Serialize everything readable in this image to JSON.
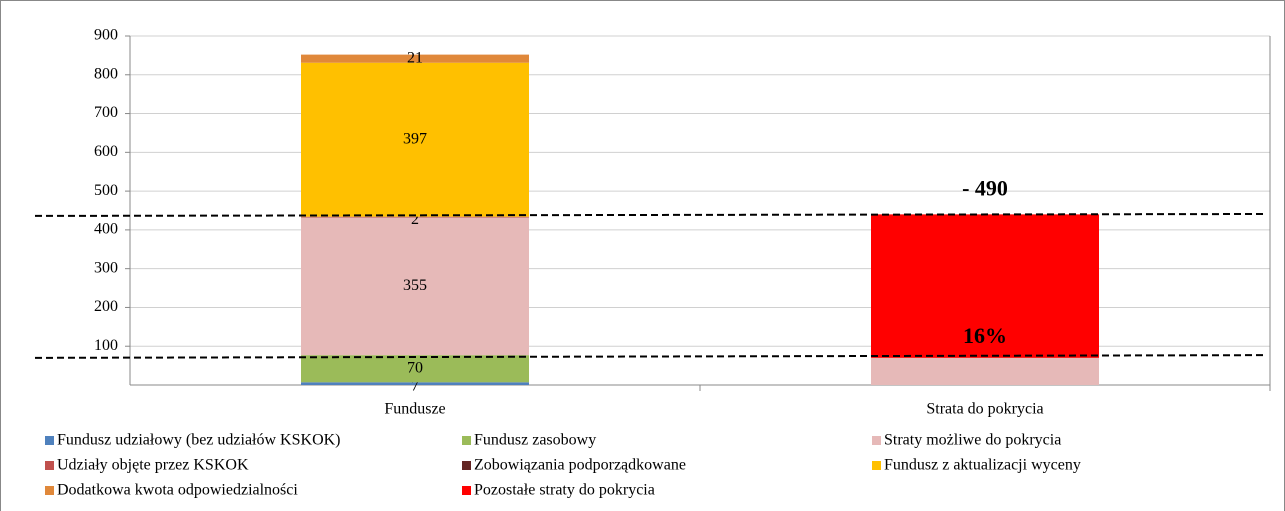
{
  "chart_data": {
    "type": "stacked_bar",
    "categories": [
      "Fundusze",
      "Strata do pokrycia"
    ],
    "series": [
      {
        "name": "Fundusz udziałowy (bez udziałów KSKOK)",
        "color": "#4f81bd",
        "values": [
          7,
          0
        ]
      },
      {
        "name": "Fundusz zasobowy",
        "color": "#9bbb59",
        "values": [
          70,
          0
        ]
      },
      {
        "name": "Straty możliwe do pokrycia",
        "color": "#e6b9b8",
        "values": [
          355,
          70
        ]
      },
      {
        "name": "Udziały objęte przez KSKOK",
        "color": "#c0504d",
        "values": [
          2,
          0
        ]
      },
      {
        "name": "Zobowiązania podporządkowane",
        "color": "#632523",
        "values": [
          0,
          0
        ]
      },
      {
        "name": "Fundusz z aktualizacji wyceny",
        "color": "#ffc000",
        "values": [
          397,
          0
        ]
      },
      {
        "name": "Dodatkowa kwota odpowiedzialności",
        "color": "#e0883a",
        "values": [
          21,
          0
        ]
      },
      {
        "name": "Pozostałe straty do pokrycia",
        "color": "#ff0000",
        "values": [
          0,
          370
        ]
      }
    ],
    "data_labels": [
      true,
      false
    ],
    "annotations": [
      "- 490",
      "16%"
    ],
    "reference_lines": [
      [
        436,
        441
      ],
      [
        70,
        77
      ]
    ],
    "ylim": [
      0,
      900
    ],
    "yticks": [
      100,
      200,
      300,
      400,
      500,
      600,
      700,
      800,
      900
    ],
    "grid": true
  }
}
